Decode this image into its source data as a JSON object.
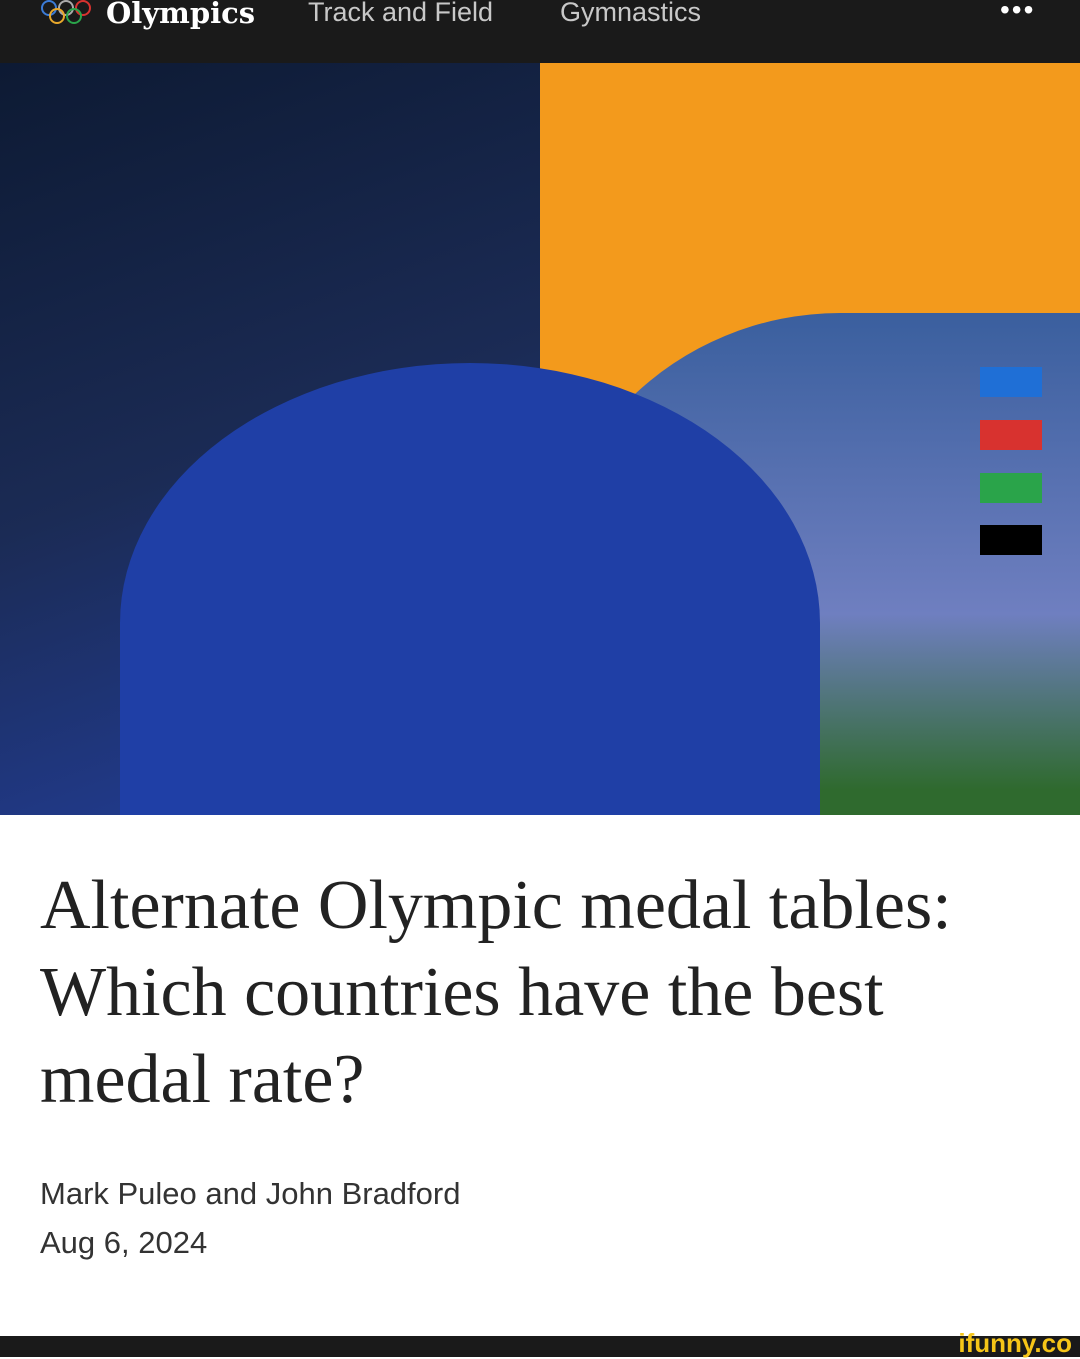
{
  "nav": {
    "brand": "Olympics",
    "links": [
      "Track and Field",
      "Gymnastics"
    ],
    "more_icon": "ellipsis-icon",
    "logo_icon": "olympic-rings-icon"
  },
  "hero": {
    "bar_colors": [
      "#1f6fd6",
      "#d8322f",
      "#2aa44a",
      "#000000"
    ],
    "accent": "#f39a1c"
  },
  "article": {
    "title": "Alternate Olympic medal tables: Which countries have the best medal rate?",
    "authors": "Mark Puleo and John Bradford",
    "date": "Aug 6, 2024"
  },
  "footer": {
    "watermark": "ifunny.co"
  }
}
